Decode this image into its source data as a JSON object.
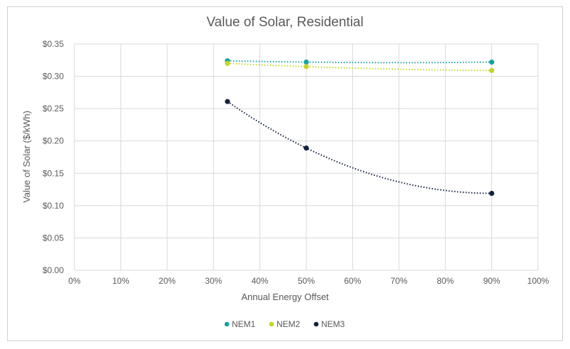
{
  "chart_data": {
    "type": "scatter",
    "title": "Value of Solar, Residential",
    "xlabel": "Annual Energy Offset",
    "ylabel": "Value of Solar ($/kWh)",
    "xlim": [
      0,
      100
    ],
    "ylim": [
      0,
      0.35
    ],
    "x_ticks": [
      "0%",
      "10%",
      "20%",
      "30%",
      "40%",
      "50%",
      "60%",
      "70%",
      "80%",
      "90%",
      "100%"
    ],
    "y_ticks": [
      "$0.00",
      "$0.05",
      "$0.10",
      "$0.15",
      "$0.20",
      "$0.25",
      "$0.30",
      "$0.35"
    ],
    "grid": true,
    "legend_position": "bottom",
    "trendline": "polynomial, dotted",
    "series": [
      {
        "name": "NEM1",
        "color": "#17a2a0",
        "x": [
          33,
          50,
          90
        ],
        "y": [
          0.324,
          0.322,
          0.322
        ]
      },
      {
        "name": "NEM2",
        "color": "#c5d42a",
        "x": [
          33,
          50,
          90
        ],
        "y": [
          0.32,
          0.315,
          0.309
        ]
      },
      {
        "name": "NEM3",
        "color": "#12213d",
        "x": [
          33,
          50,
          90
        ],
        "y": [
          0.261,
          0.189,
          0.119
        ]
      }
    ]
  }
}
